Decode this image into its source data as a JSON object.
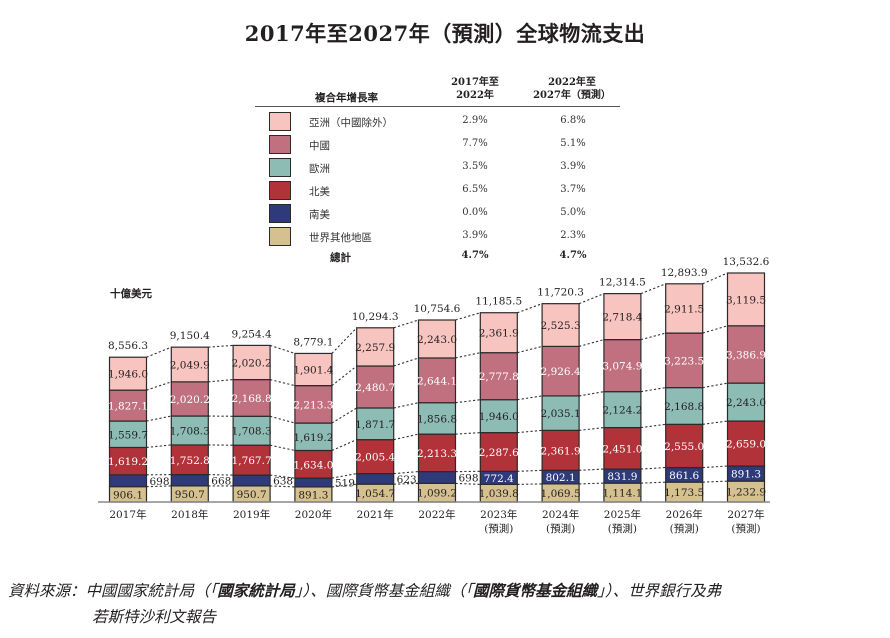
{
  "chart_data": {
    "type": "bar",
    "stacked": true,
    "title": "2017年至2027年（預測）全球物流支出",
    "ylabel": "十億美元",
    "xlabel": "",
    "categories": [
      "2017年",
      "2018年",
      "2019年",
      "2020年",
      "2021年",
      "2022年",
      "2023年",
      "2024年",
      "2025年",
      "2026年",
      "2027年"
    ],
    "category_sublabels": [
      "",
      "",
      "",
      "",
      "",
      "",
      "(預測)",
      "(預測)",
      "(預測)",
      "(預測)",
      "(預測)"
    ],
    "series": [
      {
        "name": "世界其他地區",
        "color": "#d5c08f",
        "label_color": "#231f20",
        "values": [
          906.1,
          950.7,
          950.7,
          891.3,
          1054.7,
          1099.2,
          1039.8,
          1069.5,
          1114.1,
          1173.5,
          1232.9
        ]
      },
      {
        "name": "南美",
        "color": "#2e3a7a",
        "label_color": "#ffffff",
        "values": [
          698.2,
          668.5,
          638.7,
          519.9,
          623.9,
          698.2,
          772.4,
          802.1,
          831.9,
          861.6,
          891.3
        ]
      },
      {
        "name": "北美",
        "color": "#b2323a",
        "label_color": "#ffffff",
        "values": [
          1619.2,
          1752.8,
          1767.7,
          1634.0,
          2005.4,
          2213.3,
          2287.6,
          2361.9,
          2451.0,
          2555.0,
          2659.0
        ]
      },
      {
        "name": "歐洲",
        "color": "#8dbcb4",
        "label_color": "#231f20",
        "values": [
          1559.7,
          1708.3,
          1708.3,
          1619.2,
          1871.7,
          1856.8,
          1946.0,
          2035.1,
          2124.2,
          2168.8,
          2243.0
        ]
      },
      {
        "name": "中國",
        "color": "#c0707f",
        "label_color": "#ffffff",
        "values": [
          1827.1,
          2020.2,
          2168.8,
          2213.3,
          2480.7,
          2644.1,
          2777.8,
          2926.4,
          3074.9,
          3223.5,
          3386.9
        ]
      },
      {
        "name": "亞洲（中國除外）",
        "color": "#f8c4c0",
        "label_color": "#231f20",
        "values": [
          1946.0,
          2049.9,
          2020.2,
          1901.4,
          2257.9,
          2243.0,
          2361.9,
          2525.3,
          2718.4,
          2911.5,
          3119.5
        ]
      }
    ],
    "totals": [
      8556.3,
      9150.4,
      9254.4,
      8779.1,
      10294.3,
      10754.6,
      11185.5,
      11720.3,
      12314.5,
      12893.9,
      13532.6
    ],
    "data_label_format": "comma-1-decimal",
    "connector_lines": "dotted between segment boundaries of adjacent bars",
    "ylim": [
      0,
      14000
    ],
    "grid": false,
    "legend": "top-center table"
  },
  "title": "2017年至2027年（預測）全球物流支出",
  "legend_table": {
    "header_label": "複合年增長率",
    "col1_line1": "2017年至",
    "col1_line2": "2022年",
    "col2_line1": "2022年至",
    "col2_line2": "2027年（預測）",
    "rows": [
      {
        "name": "亞洲（中國除外）",
        "color": "#f8c4c0",
        "cagr_2017_2022": "2.9%",
        "cagr_2022_2027": "6.8%"
      },
      {
        "name": "中國",
        "color": "#c0707f",
        "cagr_2017_2022": "7.7%",
        "cagr_2022_2027": "5.1%"
      },
      {
        "name": "歐洲",
        "color": "#8dbcb4",
        "cagr_2017_2022": "3.5%",
        "cagr_2022_2027": "3.9%"
      },
      {
        "name": "北美",
        "color": "#b2323a",
        "cagr_2017_2022": "6.5%",
        "cagr_2022_2027": "3.7%"
      },
      {
        "name": "南美",
        "color": "#2e3a7a",
        "cagr_2017_2022": "0.0%",
        "cagr_2022_2027": "5.0%"
      },
      {
        "name": "世界其他地區",
        "color": "#d5c08f",
        "cagr_2017_2022": "3.9%",
        "cagr_2022_2027": "2.3%"
      }
    ],
    "total_label": "總計",
    "total_2017_2022": "4.7%",
    "total_2022_2027": "4.7%"
  },
  "unit_label": "十億美元",
  "source": {
    "prefix": "資料來源：中國國家統計局（「",
    "bold1": "國家統計局",
    "mid": "」）、國際貨幣基金組織（「",
    "bold2": "國際貨幣基金組織",
    "suffix": "」）、世界銀行及弗",
    "line2": "若斯特沙利文報告"
  }
}
